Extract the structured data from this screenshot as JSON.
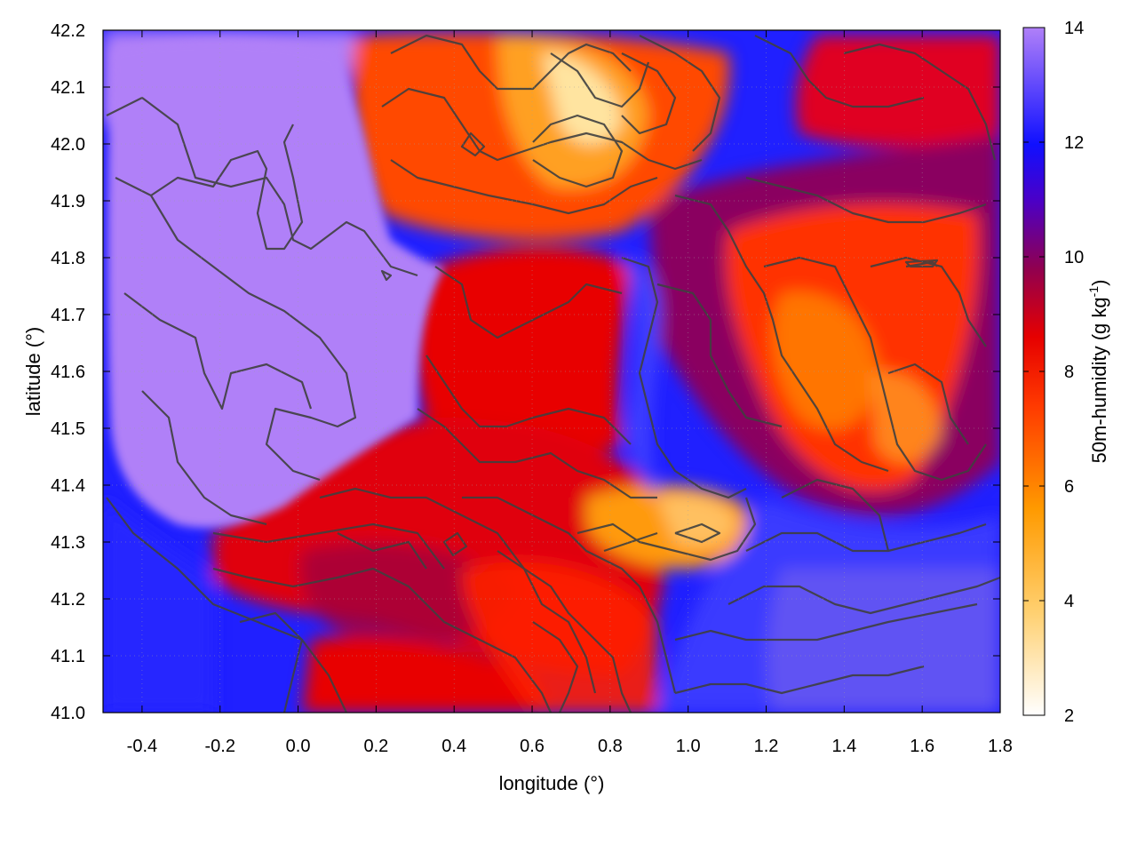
{
  "chart_data": {
    "type": "heatmap",
    "title": "",
    "xlabel": "longitude (°)",
    "ylabel": "latitude (°)",
    "colorbar": {
      "label_main": "50m-humidity (g kg",
      "label_sup": "-1",
      "label_end": ")",
      "range": [
        2,
        14
      ],
      "ticks": [
        "14",
        "12",
        "10",
        "8",
        "6",
        "4",
        "2"
      ],
      "colors": [
        "#ffffff",
        "#ffd070",
        "#ff9a00",
        "#ff3a00",
        "#e60000",
        "#900050",
        "#4a00c8",
        "#1010ff",
        "#b080f8"
      ]
    },
    "xlim": [
      -0.5,
      1.8
    ],
    "ylim": [
      41.0,
      42.2
    ],
    "x_ticks": [
      "-0.4",
      "-0.2",
      "0.0",
      "0.2",
      "0.4",
      "0.6",
      "0.8",
      "1.0",
      "1.2",
      "1.4",
      "1.6",
      "1.8"
    ],
    "y_ticks": [
      "42.2",
      "42.1",
      "42.0",
      "41.9",
      "41.8",
      "41.7",
      "41.6",
      "41.5",
      "41.4",
      "41.3",
      "41.2",
      "41.1",
      "41.0"
    ],
    "grid": true,
    "overlay": "terrain contour lines"
  }
}
